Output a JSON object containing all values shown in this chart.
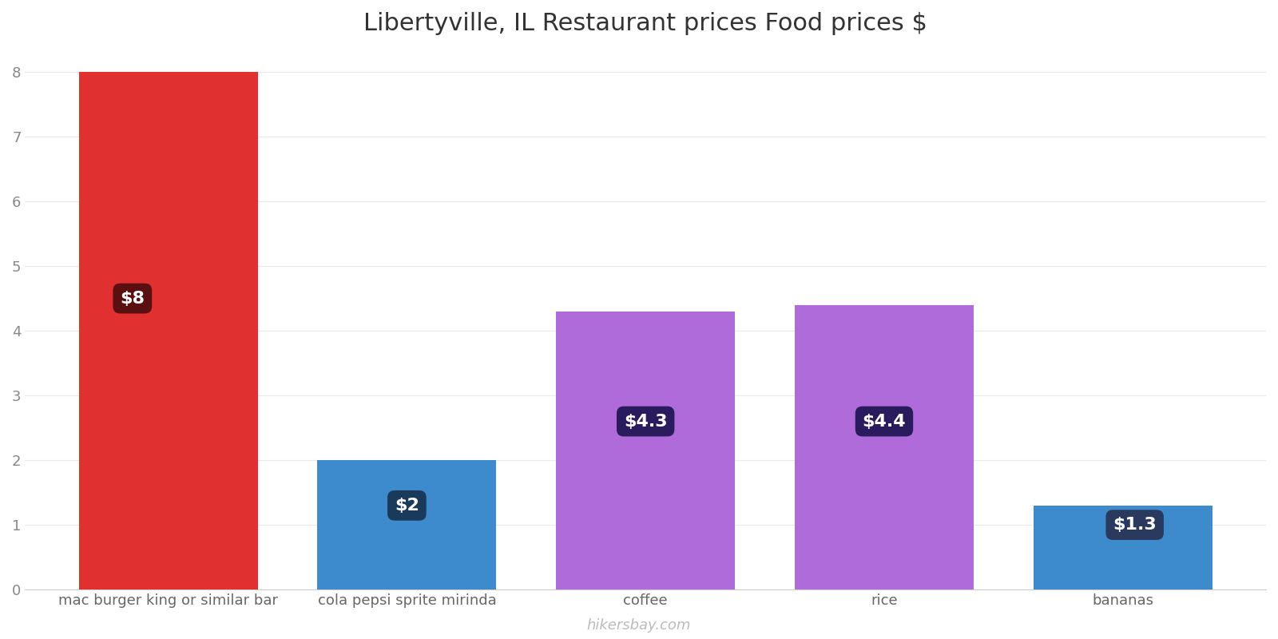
{
  "title": "Libertyville, IL Restaurant prices Food prices $",
  "categories": [
    "mac burger king or similar bar",
    "cola pepsi sprite mirinda",
    "coffee",
    "rice",
    "bananas"
  ],
  "values": [
    8.0,
    2.0,
    4.3,
    4.4,
    1.3
  ],
  "bar_colors": [
    "#e03030",
    "#3d8bcd",
    "#b06bdb",
    "#b06bdb",
    "#3d8bcd"
  ],
  "label_texts": [
    "$8",
    "$2",
    "$4.3",
    "$4.4",
    "$1.3"
  ],
  "label_bg_colors": [
    "#5a1010",
    "#1a3a5c",
    "#2a1a5e",
    "#2a1a5e",
    "#2a3a5e"
  ],
  "ylim": [
    0,
    8.3
  ],
  "yticks": [
    0,
    1,
    2,
    3,
    4,
    5,
    6,
    7,
    8
  ],
  "title_fontsize": 22,
  "tick_fontsize": 13,
  "label_fontsize": 16,
  "watermark": "hikersbay.com",
  "background_color": "#ffffff",
  "label_y_positions": [
    4.5,
    1.3,
    2.6,
    2.6,
    1.0
  ],
  "label_x_offsets": [
    -0.15,
    0.0,
    0.0,
    0.0,
    0.05
  ],
  "bar_width": 0.75
}
